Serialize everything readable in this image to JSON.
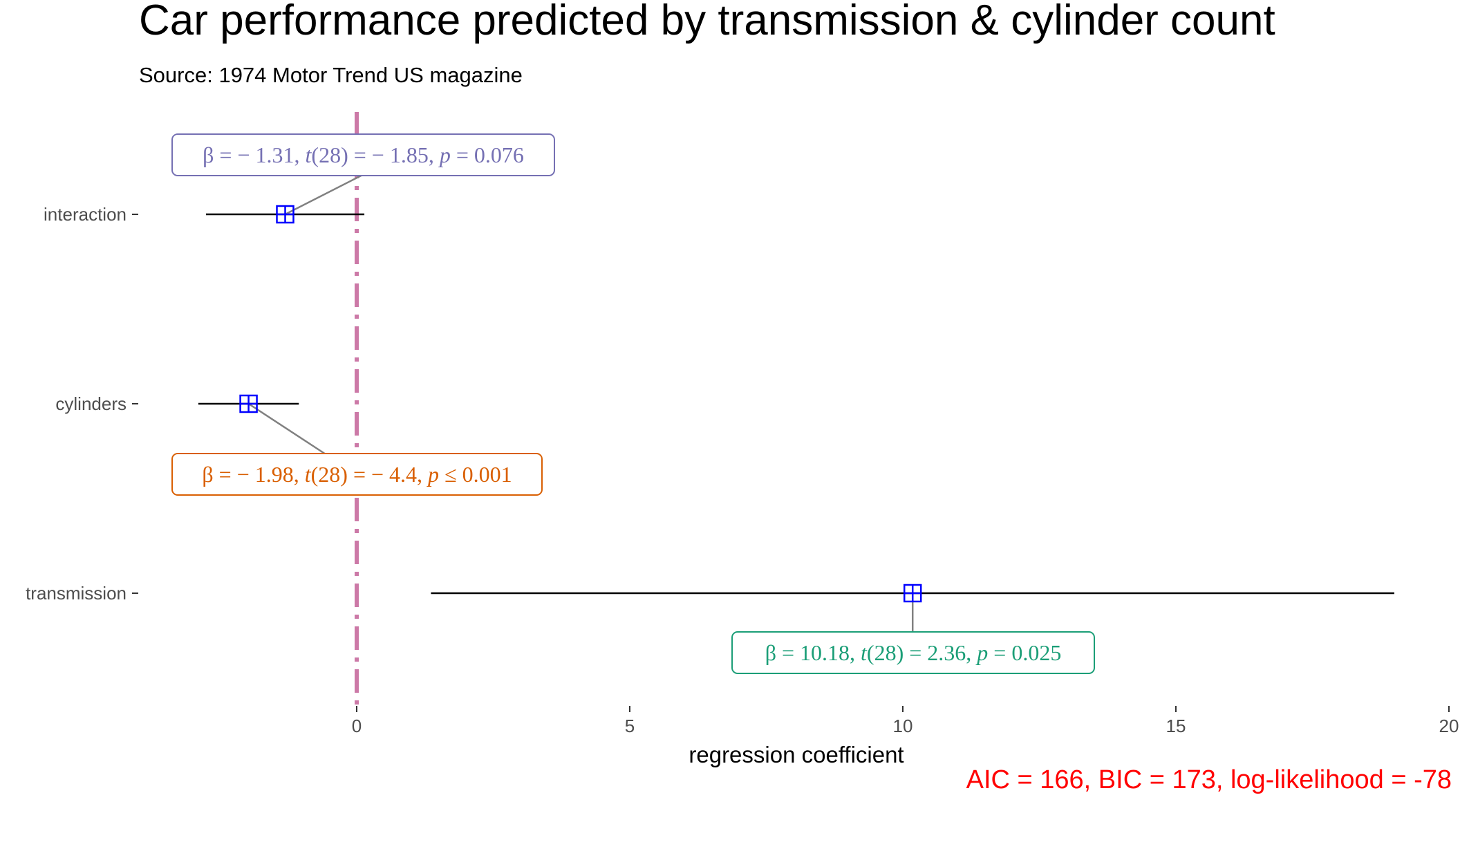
{
  "chart_data": {
    "type": "coefficient-plot",
    "title": "Car performance predicted by transmission & cylinder count",
    "subtitle": "Source: 1974 Motor Trend US magazine",
    "xlabel": "regression coefficient",
    "ylabel": "",
    "xlim": [
      -4,
      20
    ],
    "x_ticks": [
      0,
      5,
      10,
      15,
      20
    ],
    "reference_line": 0,
    "reference_line_color": "#CC79A7",
    "point_color": "#0000FF",
    "errorbar_color": "#000000",
    "grid": false,
    "terms": [
      {
        "term": "interaction",
        "estimate": -1.31,
        "ci_low": -2.76,
        "ci_high": 0.14,
        "label_color": "#7570B3",
        "label": {
          "beta": "-1.31",
          "df": "28",
          "t": "-1.85",
          "p_rel": "=",
          "p": "0.076"
        }
      },
      {
        "term": "cylinders",
        "estimate": -1.98,
        "ci_low": -2.9,
        "ci_high": -1.06,
        "label_color": "#D95F02",
        "label": {
          "beta": "-1.98",
          "df": "28",
          "t": "-4.4",
          "p_rel": "≤",
          "p": "0.001"
        }
      },
      {
        "term": "transmission",
        "estimate": 10.18,
        "ci_low": 1.36,
        "ci_high": 19.0,
        "label_color": "#1B9E77",
        "label": {
          "beta": "10.18",
          "df": "28",
          "t": "2.36",
          "p_rel": "=",
          "p": "0.025"
        }
      }
    ],
    "caption": "AIC = 166, BIC = 173, log-likelihood = -78",
    "caption_color": "#FF0000"
  }
}
